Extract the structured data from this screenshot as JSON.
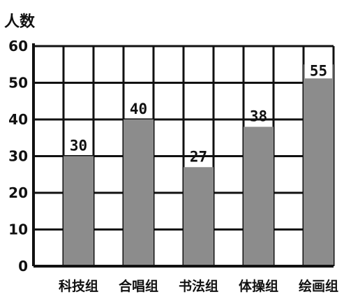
{
  "chart_data": {
    "type": "bar",
    "ylabel": "人数",
    "categories": [
      "科技组",
      "合唱组",
      "书法组",
      "体操组",
      "绘画组"
    ],
    "values": [
      30,
      40,
      27,
      38,
      55
    ],
    "data_labels": [
      "30",
      "40",
      "27",
      "38",
      "55"
    ],
    "ylim": [
      0,
      60
    ],
    "yticks": [
      0,
      10,
      20,
      30,
      40,
      50,
      60
    ],
    "grid": true,
    "bar_color": "#8c8c8c",
    "grid_color": "#111111"
  }
}
